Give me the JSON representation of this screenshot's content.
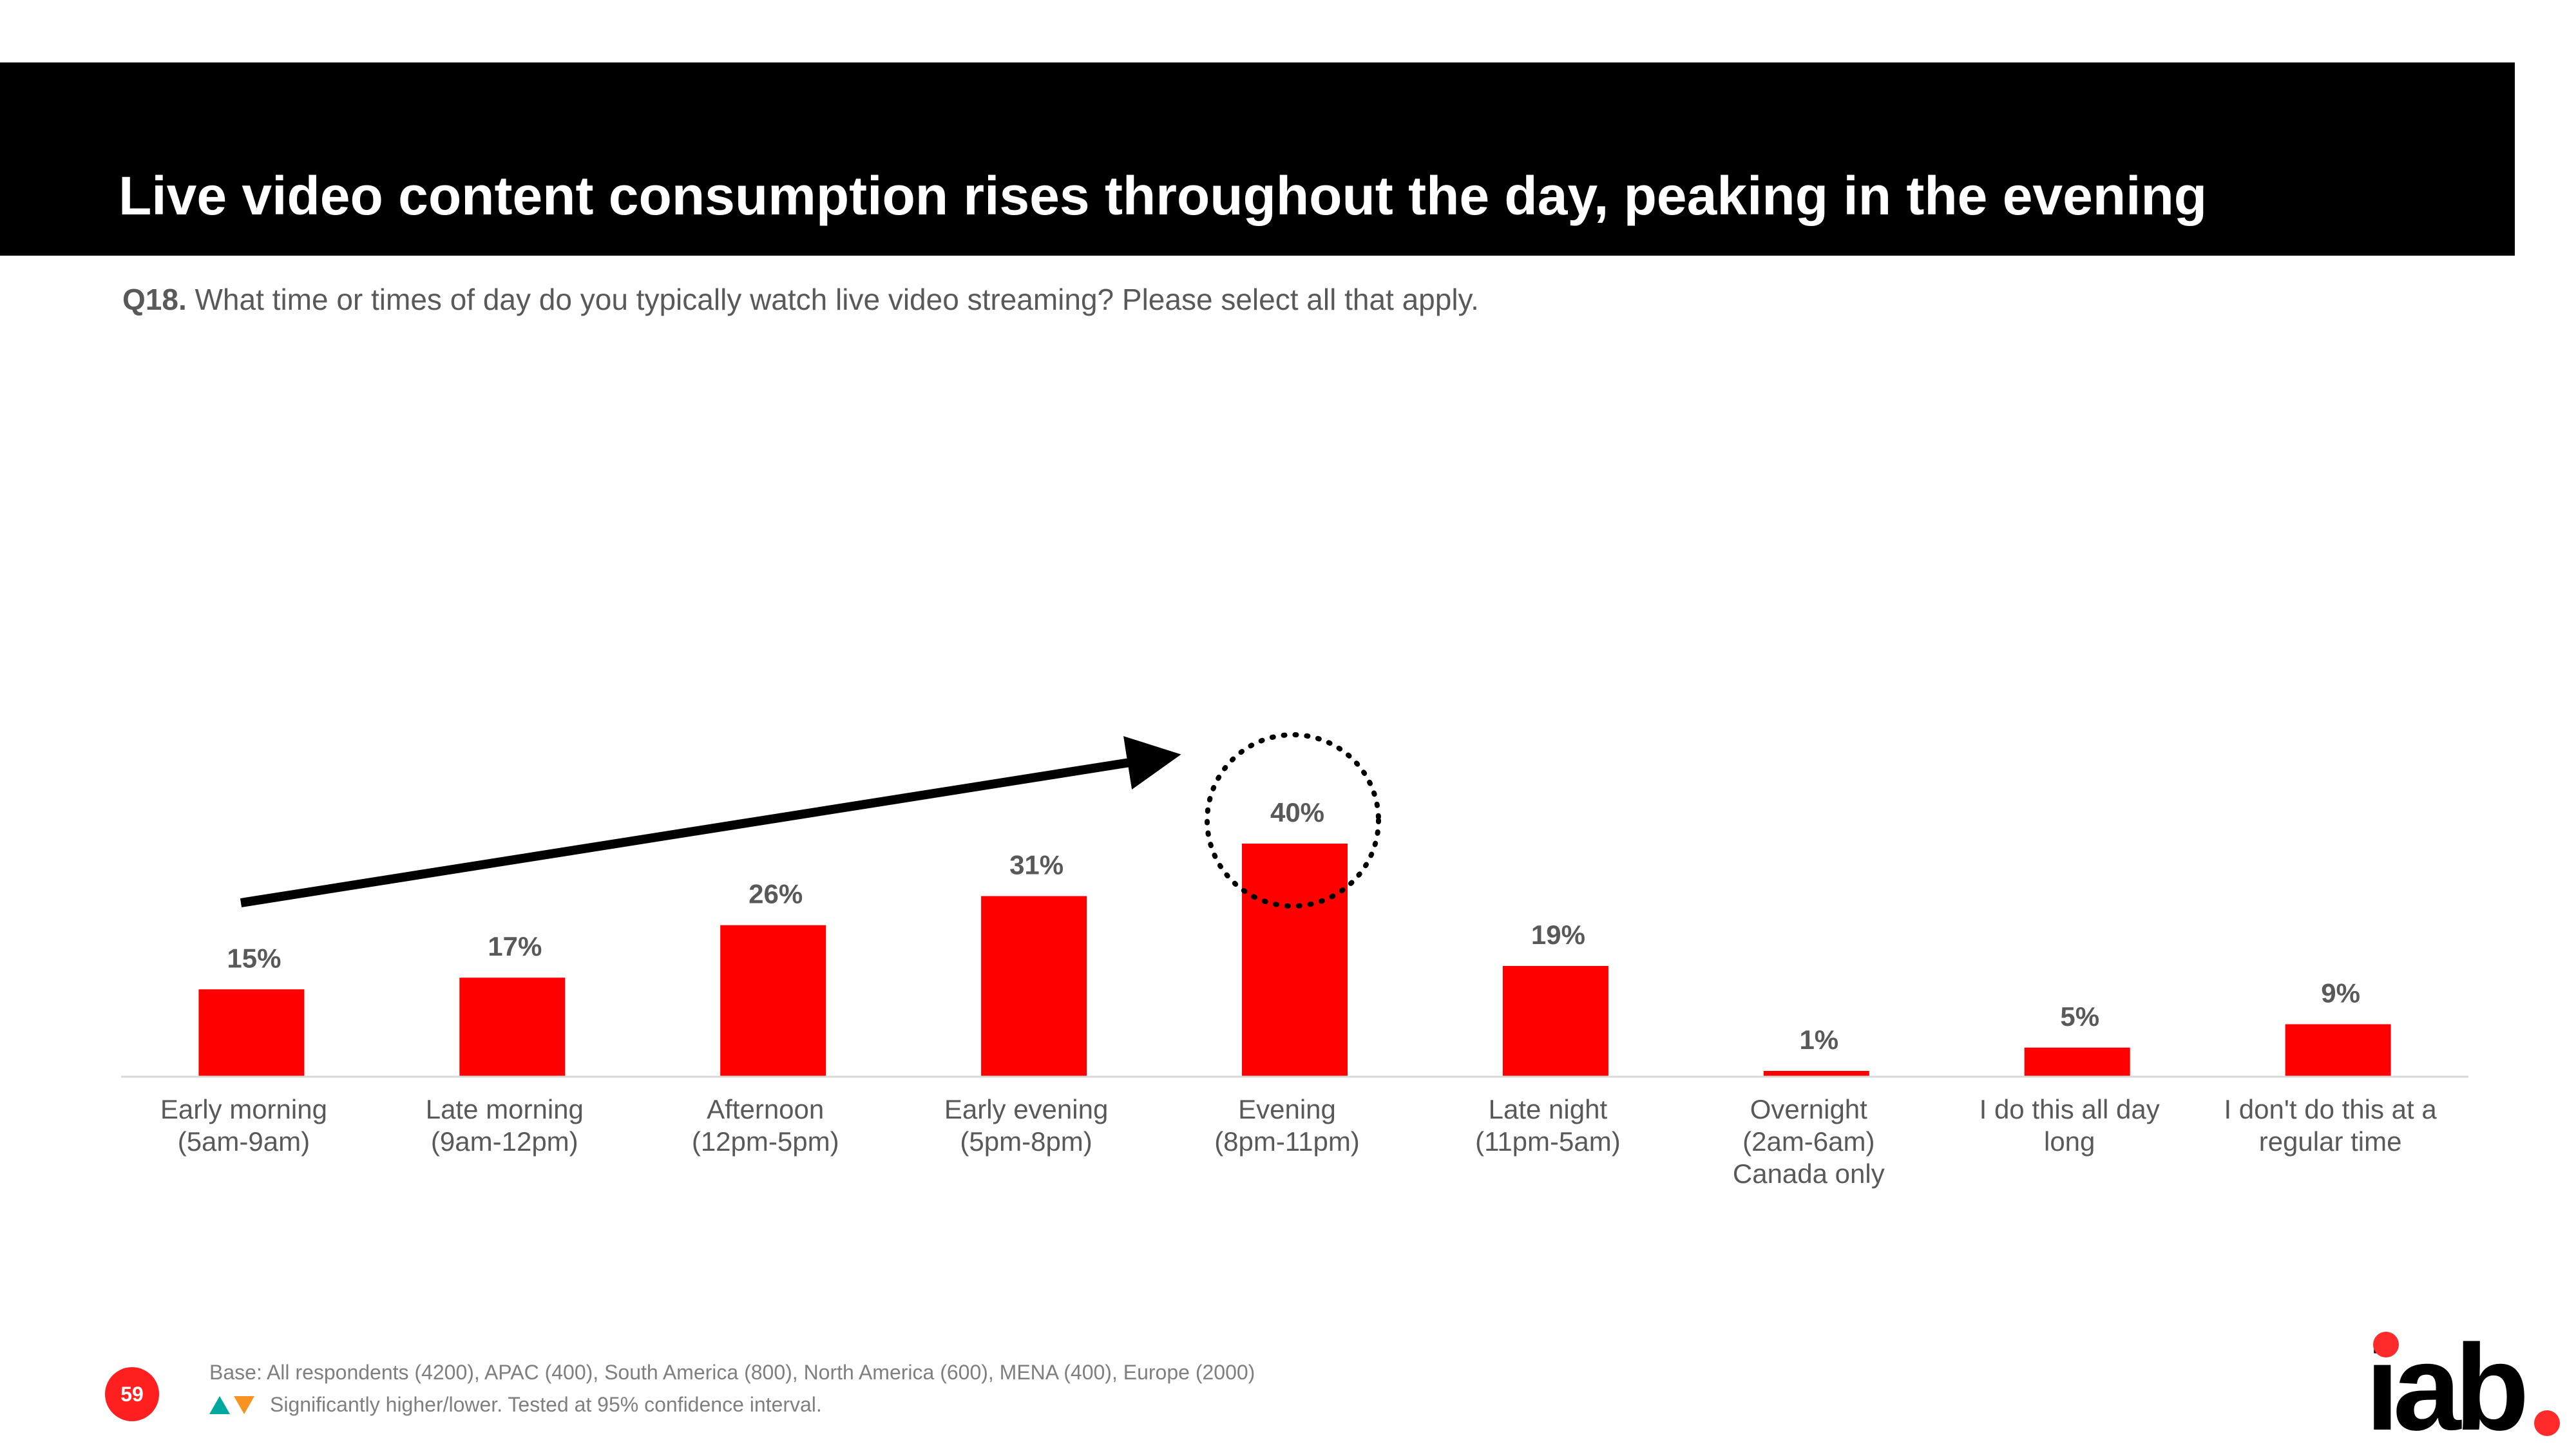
{
  "header": {
    "title": "Live video content consumption rises throughout the day, peaking in the evening"
  },
  "question": {
    "number": "Q18.",
    "text": "What time or times of day do you typically watch live video streaming? Please select all that apply."
  },
  "chart_data": {
    "type": "bar",
    "title": "",
    "xlabel": "",
    "ylabel": "",
    "ylim": [
      0,
      100
    ],
    "grid": false,
    "categories": [
      "Early morning\n(5am-9am)",
      "Late morning\n(9am-12pm)",
      "Afternoon\n(12pm-5pm)",
      "Early evening\n(5pm-8pm)",
      "Evening\n(8pm-11pm)",
      "Late night\n(11pm-5am)",
      "Overnight\n(2am-6am)\nCanada only",
      "I do this all day\nlong",
      "I don't do this at a\nregular time"
    ],
    "values": [
      15,
      17,
      26,
      31,
      40,
      19,
      1,
      5,
      9
    ],
    "data_labels": [
      "15%",
      "17%",
      "26%",
      "31%",
      "40%",
      "19%",
      "1%",
      "5%",
      "9%"
    ],
    "highlight_index": 4,
    "annotations": [
      "upward trend arrow from Early morning to Evening",
      "dotted circle highlighting Evening 40%"
    ]
  },
  "footer": {
    "page_number": "59",
    "base_note": "Base: All respondents (4200), APAC (400), South America (800), North America (600), MENA (400), Europe (2000)",
    "significance_note": "Significantly higher/lower. Tested at 95% confidence interval."
  },
  "logo": {
    "text": "iab"
  },
  "colors": {
    "bar": "#ff0000",
    "title_bg": "#000000",
    "title_text": "#ffffff",
    "label_text": "#595959",
    "baseline": "#d9d9d9",
    "page_badge": "#ff1f1f",
    "logo_dot": "#ff2a2a",
    "up_triangle": "#00a99d",
    "down_triangle": "#f7931e"
  }
}
